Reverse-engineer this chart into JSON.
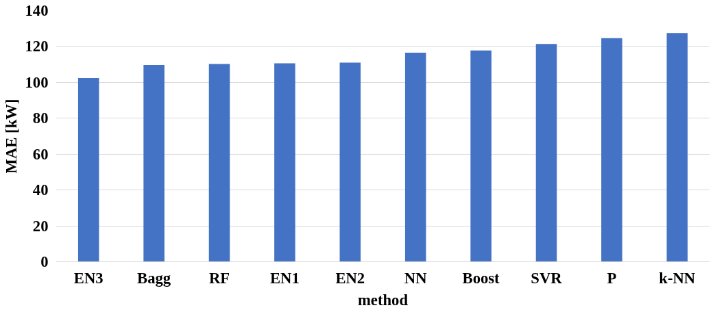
{
  "chart_data": {
    "type": "bar",
    "xlabel": "method",
    "ylabel": "MAE [kW]",
    "categories": [
      "EN3",
      "Bagg",
      "RF",
      "EN1",
      "EN2",
      "NN",
      "Boost",
      "SVR",
      "P",
      "k-NN"
    ],
    "values": [
      102.4,
      109.7,
      110.2,
      110.6,
      111.0,
      116.5,
      117.8,
      121.4,
      124.6,
      127.5
    ],
    "color": "#4472c4",
    "ylim": [
      0,
      140
    ],
    "yticks": [
      0,
      20,
      40,
      60,
      80,
      100,
      120,
      140
    ],
    "grid": "y"
  }
}
